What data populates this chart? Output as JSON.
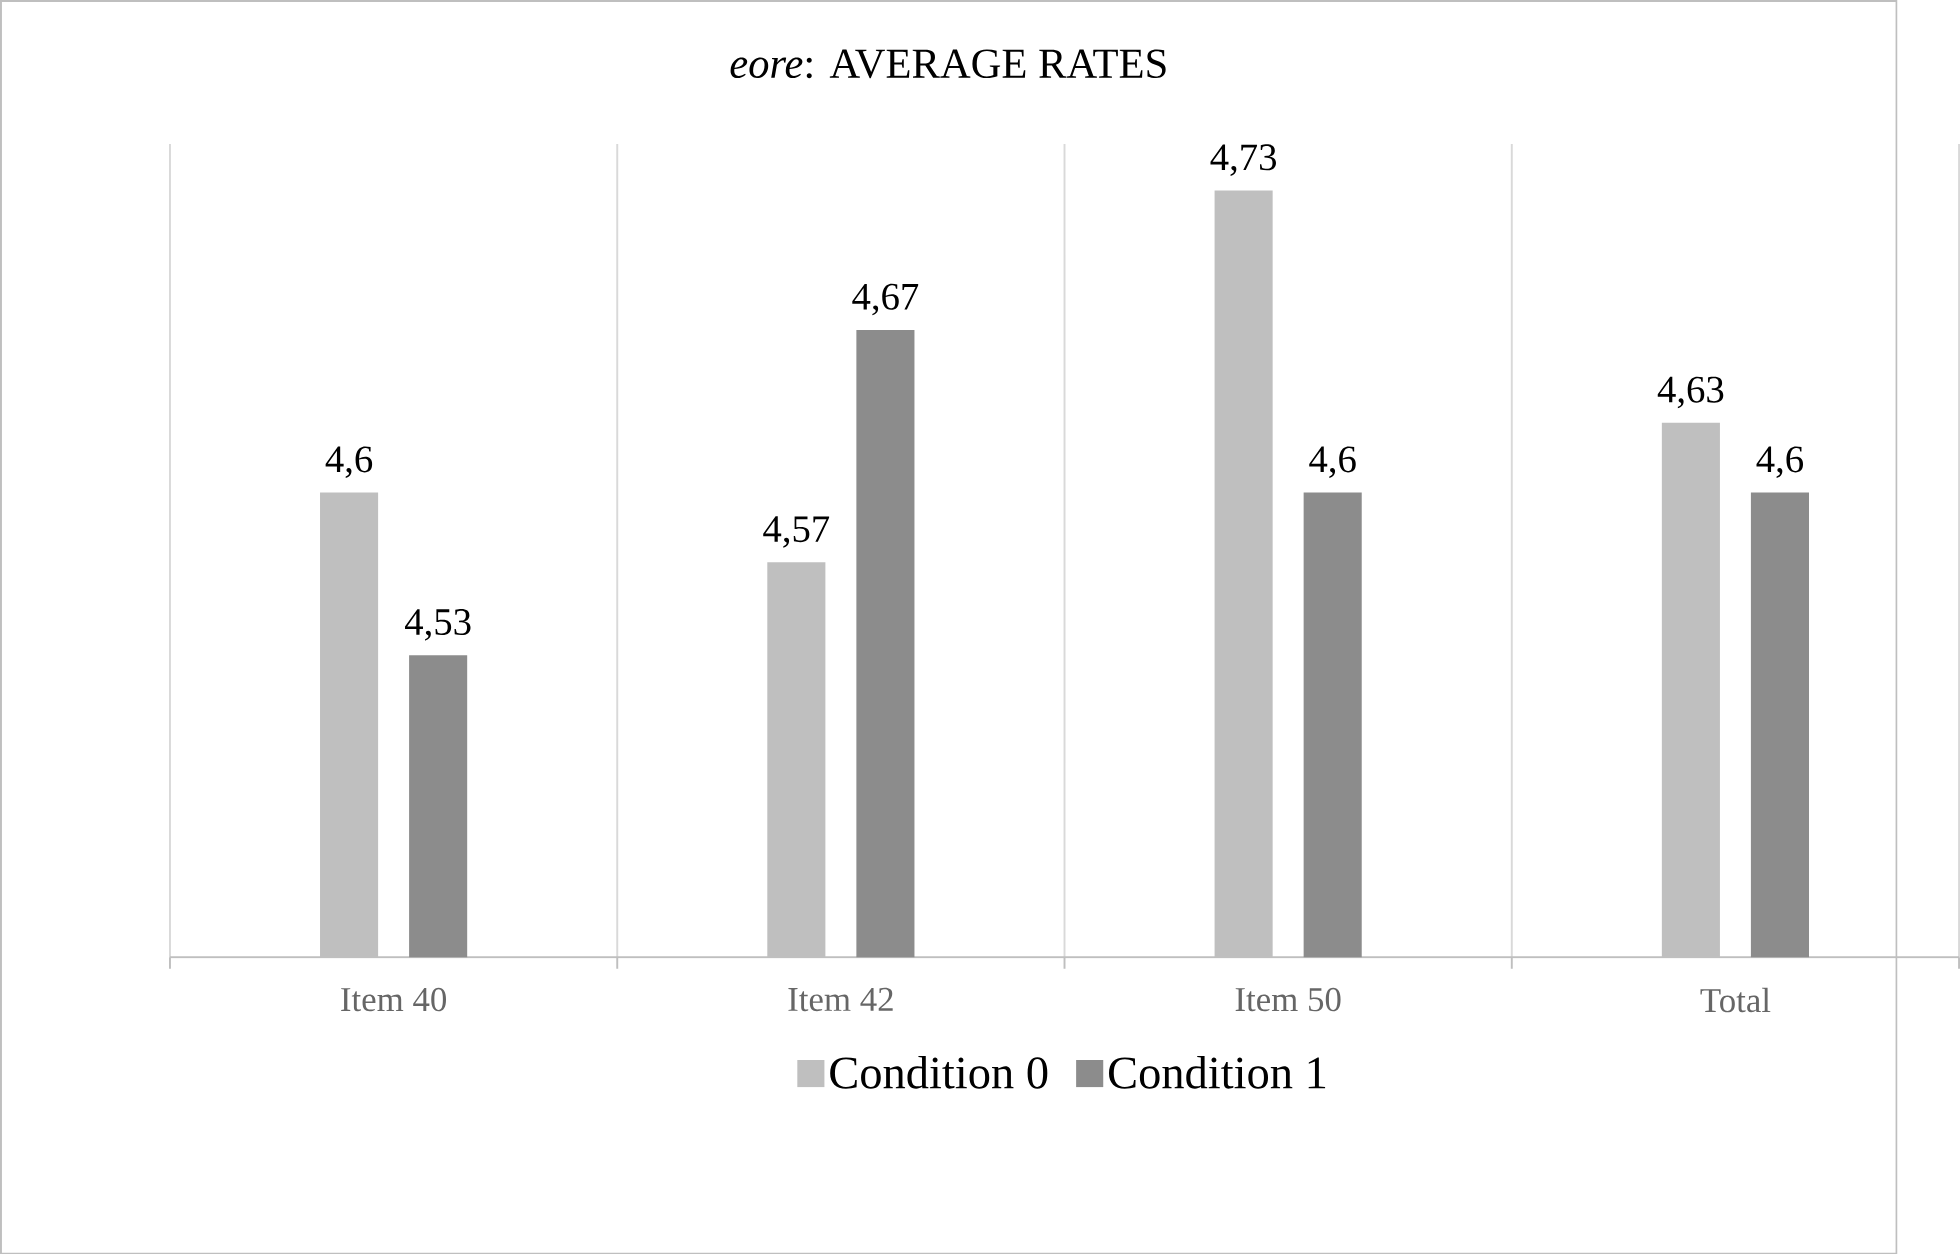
{
  "chart_data": {
    "type": "bar",
    "title": "*eore*: AVERAGE RATES",
    "categories": [
      "Item 40",
      "Item 42",
      "Item 50",
      "Total"
    ],
    "series": [
      {
        "name": "Condition 0",
        "color": "#bfbfbf",
        "values": [
          4.6,
          4.57,
          4.73,
          4.63
        ],
        "value_labels": [
          "4,6",
          "4,57",
          "4,73",
          "4,63"
        ]
      },
      {
        "name": "Condition 1",
        "color": "#8c8c8c",
        "values": [
          4.53,
          4.67,
          4.6,
          4.6
        ],
        "value_labels": [
          "4,53",
          "4,67",
          "4,6",
          "4,6"
        ]
      }
    ],
    "ylim": [
      4.4,
      4.75
    ],
    "grid": "x",
    "legend": "bottom"
  }
}
